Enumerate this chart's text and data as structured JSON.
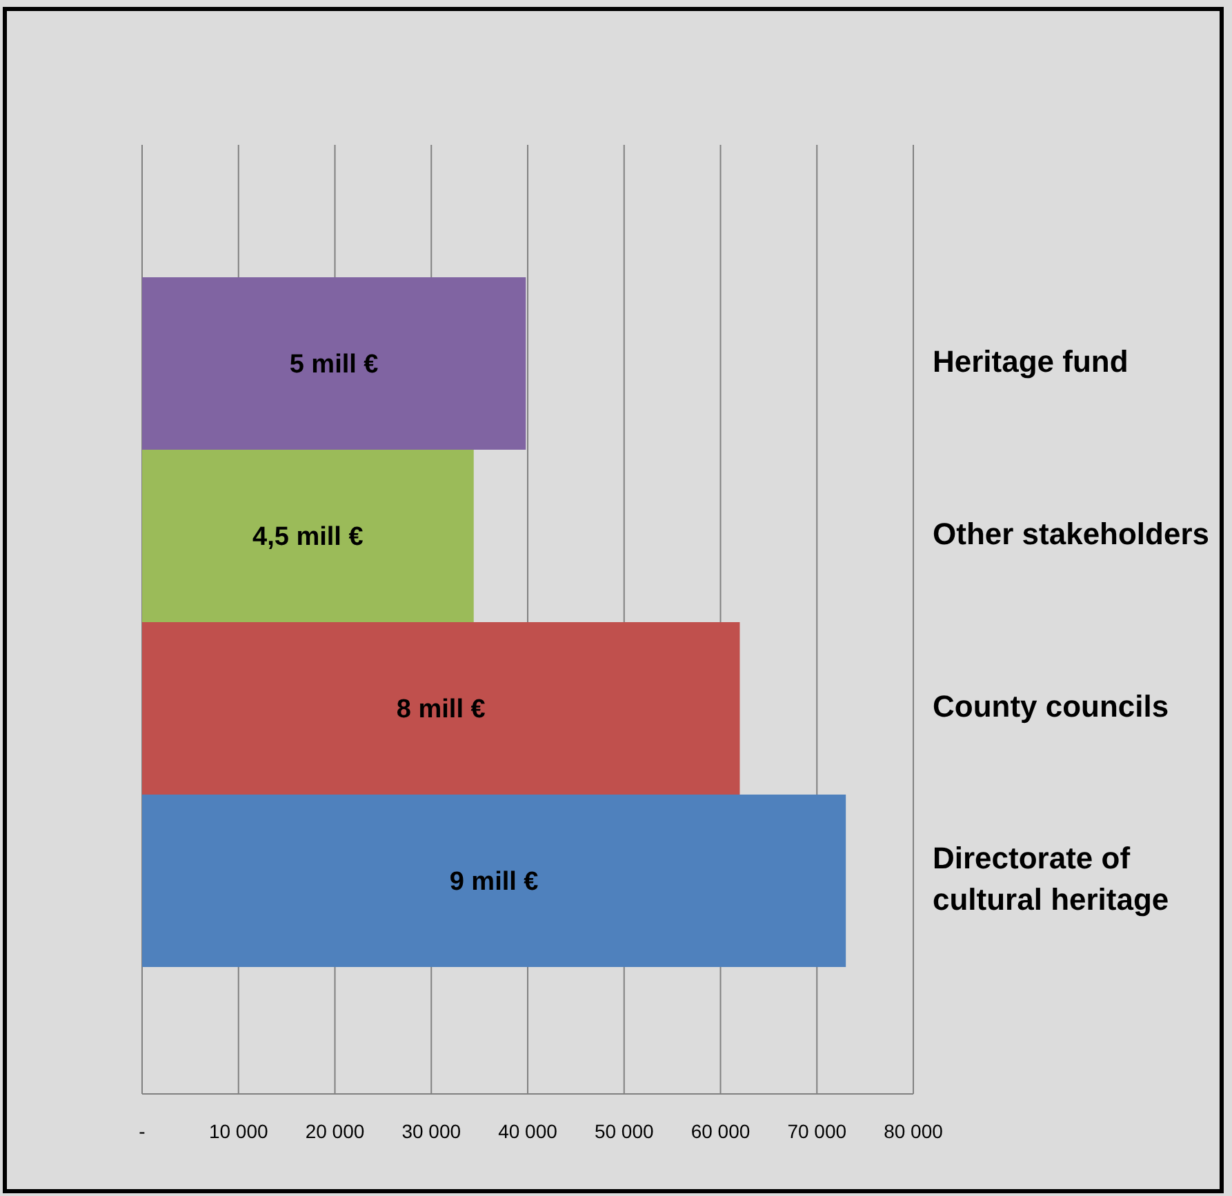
{
  "chart_data": {
    "type": "bar",
    "orientation": "horizontal",
    "categories": [
      "Heritage fund",
      "Other stakeholders",
      "County councils",
      "Directorate of cultural heritage"
    ],
    "values": [
      39800,
      34400,
      62000,
      73000
    ],
    "colors": [
      "#8064a2",
      "#9bbb59",
      "#c0504d",
      "#4f81bd"
    ],
    "annotations": [
      "5 mill €",
      "4,5 mill €",
      "8 mill €",
      "9 mill €"
    ],
    "xlim": [
      0,
      80000
    ],
    "xticks": [
      {
        "value": 0,
        "label": "-"
      },
      {
        "value": 10000,
        "label": "10 000"
      },
      {
        "value": 20000,
        "label": "20 000"
      },
      {
        "value": 30000,
        "label": "30 000"
      },
      {
        "value": 40000,
        "label": "40 000"
      },
      {
        "value": 50000,
        "label": "50 000"
      },
      {
        "value": 60000,
        "label": "60 000"
      },
      {
        "value": 70000,
        "label": "70 000"
      },
      {
        "value": 80000,
        "label": "80 000"
      }
    ],
    "grid": "x",
    "legend": false
  }
}
